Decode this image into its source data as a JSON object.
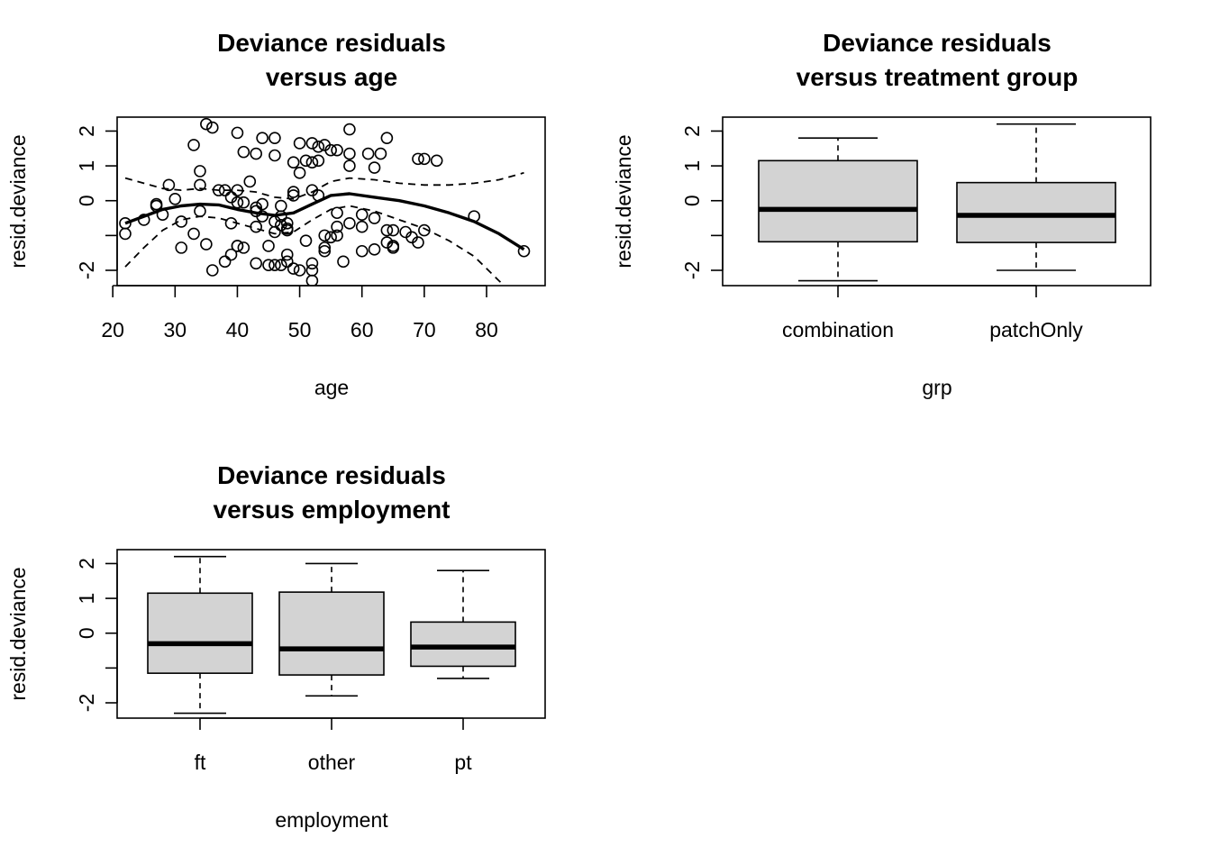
{
  "colors": {
    "box_fill": "#d3d3d3",
    "ink": "#000000",
    "background": "#ffffff"
  },
  "chart_data": [
    {
      "type": "scatter",
      "title": "Deviance residuals\nversus age",
      "title_lines": [
        "Deviance residuals",
        "versus age"
      ],
      "xlabel": "age",
      "ylabel": "resid.deviance",
      "xlim": [
        20.7,
        89.4
      ],
      "ylim": [
        -2.44,
        2.4
      ],
      "x_ticks": [
        20,
        30,
        40,
        50,
        60,
        70,
        80
      ],
      "y_ticks": [
        -2,
        -1,
        0,
        1,
        2
      ],
      "y_tick_labels": [
        "-2",
        "",
        "0",
        "1",
        "2"
      ],
      "grid": false,
      "points": [
        [
          22,
          -0.65
        ],
        [
          22,
          -0.95
        ],
        [
          25,
          -0.55
        ],
        [
          27,
          -0.1
        ],
        [
          27,
          -0.15
        ],
        [
          28,
          -0.4
        ],
        [
          29,
          0.45
        ],
        [
          30,
          0.05
        ],
        [
          31,
          -0.6
        ],
        [
          31,
          -1.35
        ],
        [
          33,
          -0.95
        ],
        [
          33,
          1.6
        ],
        [
          34,
          0.85
        ],
        [
          34,
          -0.3
        ],
        [
          34,
          0.45
        ],
        [
          35,
          2.2
        ],
        [
          35,
          -1.25
        ],
        [
          36,
          2.1
        ],
        [
          36,
          -2.0
        ],
        [
          37,
          0.3
        ],
        [
          38,
          0.3
        ],
        [
          38,
          -1.75
        ],
        [
          39,
          -1.55
        ],
        [
          39,
          -0.65
        ],
        [
          39,
          0.1
        ],
        [
          40,
          -0.05
        ],
        [
          40,
          0.3
        ],
        [
          40,
          1.95
        ],
        [
          40,
          -1.3
        ],
        [
          40,
          -1.3
        ],
        [
          41,
          -1.35
        ],
        [
          41,
          1.4
        ],
        [
          41,
          -0.05
        ],
        [
          42,
          0.55
        ],
        [
          43,
          1.35
        ],
        [
          43,
          -0.3
        ],
        [
          43,
          -0.2
        ],
        [
          43,
          -0.75
        ],
        [
          43,
          -1.8
        ],
        [
          44,
          -0.1
        ],
        [
          44,
          -0.45
        ],
        [
          44,
          1.8
        ],
        [
          45,
          -1.3
        ],
        [
          45,
          -1.85
        ],
        [
          46,
          1.8
        ],
        [
          46,
          -0.6
        ],
        [
          46,
          -0.9
        ],
        [
          46,
          1.3
        ],
        [
          46,
          -1.85
        ],
        [
          47,
          -0.7
        ],
        [
          47,
          -0.15
        ],
        [
          47,
          -0.45
        ],
        [
          47,
          -1.85
        ],
        [
          48,
          -0.65
        ],
        [
          48,
          -1.55
        ],
        [
          48,
          -0.8
        ],
        [
          48,
          -0.85
        ],
        [
          48,
          -1.75
        ],
        [
          49,
          1.1
        ],
        [
          49,
          0.25
        ],
        [
          49,
          0.15
        ],
        [
          49,
          -1.95
        ],
        [
          50,
          0.8
        ],
        [
          50,
          1.65
        ],
        [
          50,
          -2.0
        ],
        [
          51,
          1.15
        ],
        [
          51,
          -1.15
        ],
        [
          52,
          1.65
        ],
        [
          52,
          1.1
        ],
        [
          52,
          0.3
        ],
        [
          52,
          -1.8
        ],
        [
          52,
          -2.0
        ],
        [
          52,
          -2.3
        ],
        [
          53,
          1.55
        ],
        [
          53,
          1.15
        ],
        [
          53,
          0.15
        ],
        [
          54,
          -1.35
        ],
        [
          54,
          -1.0
        ],
        [
          54,
          -1.45
        ],
        [
          54,
          1.6
        ],
        [
          55,
          1.45
        ],
        [
          55,
          -1.05
        ],
        [
          56,
          1.45
        ],
        [
          56,
          -0.35
        ],
        [
          56,
          -0.75
        ],
        [
          56,
          -1.0
        ],
        [
          57,
          -1.75
        ],
        [
          58,
          1.35
        ],
        [
          58,
          1.0
        ],
        [
          58,
          2.05
        ],
        [
          58,
          -0.65
        ],
        [
          60,
          -0.4
        ],
        [
          60,
          -0.75
        ],
        [
          60,
          -1.45
        ],
        [
          61,
          1.35
        ],
        [
          62,
          -0.5
        ],
        [
          62,
          -1.4
        ],
        [
          62,
          0.95
        ],
        [
          63,
          1.35
        ],
        [
          64,
          1.8
        ],
        [
          64,
          -0.85
        ],
        [
          64,
          -1.2
        ],
        [
          65,
          -1.3
        ],
        [
          65,
          -1.35
        ],
        [
          65,
          -0.85
        ],
        [
          67,
          -0.9
        ],
        [
          68,
          -1.05
        ],
        [
          69,
          -1.2
        ],
        [
          69,
          1.2
        ],
        [
          70,
          -0.85
        ],
        [
          70,
          1.2
        ],
        [
          72,
          1.15
        ],
        [
          78,
          -0.45
        ],
        [
          86,
          -1.45
        ]
      ],
      "smooth_fit": [
        [
          22,
          -0.65
        ],
        [
          25,
          -0.45
        ],
        [
          28,
          -0.25
        ],
        [
          31,
          -0.15
        ],
        [
          34,
          -0.1
        ],
        [
          37,
          -0.12
        ],
        [
          40,
          -0.25
        ],
        [
          43,
          -0.35
        ],
        [
          46,
          -0.42
        ],
        [
          49,
          -0.35
        ],
        [
          52,
          -0.1
        ],
        [
          55,
          0.15
        ],
        [
          58,
          0.2
        ],
        [
          62,
          0.1
        ],
        [
          66,
          0.0
        ],
        [
          70,
          -0.15
        ],
        [
          74,
          -0.35
        ],
        [
          78,
          -0.6
        ],
        [
          82,
          -0.95
        ],
        [
          86,
          -1.4
        ]
      ],
      "upper_band": [
        [
          22,
          0.65
        ],
        [
          25,
          0.5
        ],
        [
          28,
          0.35
        ],
        [
          31,
          0.3
        ],
        [
          34,
          0.35
        ],
        [
          37,
          0.3
        ],
        [
          40,
          0.3
        ],
        [
          43,
          0.25
        ],
        [
          46,
          0.1
        ],
        [
          49,
          0.05
        ],
        [
          52,
          0.25
        ],
        [
          55,
          0.55
        ],
        [
          58,
          0.65
        ],
        [
          62,
          0.6
        ],
        [
          66,
          0.5
        ],
        [
          70,
          0.45
        ],
        [
          74,
          0.45
        ],
        [
          78,
          0.5
        ],
        [
          82,
          0.6
        ],
        [
          86,
          0.8
        ]
      ],
      "lower_band": [
        [
          22,
          -1.9
        ],
        [
          25,
          -1.35
        ],
        [
          28,
          -0.85
        ],
        [
          31,
          -0.55
        ],
        [
          34,
          -0.45
        ],
        [
          37,
          -0.5
        ],
        [
          40,
          -0.65
        ],
        [
          43,
          -0.8
        ],
        [
          46,
          -0.95
        ],
        [
          49,
          -0.9
        ],
        [
          52,
          -0.55
        ],
        [
          55,
          -0.25
        ],
        [
          58,
          -0.15
        ],
        [
          62,
          -0.3
        ],
        [
          66,
          -0.55
        ],
        [
          70,
          -0.8
        ],
        [
          74,
          -1.15
        ],
        [
          78,
          -1.6
        ],
        [
          82,
          -2.3
        ],
        [
          83.5,
          -2.55
        ]
      ]
    },
    {
      "type": "box",
      "title": "Deviance residuals\nversus treatment group",
      "title_lines": [
        "Deviance residuals",
        "versus treatment group"
      ],
      "xlabel": "grp",
      "ylabel": "resid.deviance",
      "ylim": [
        -2.44,
        2.4
      ],
      "y_ticks": [
        -2,
        -1,
        0,
        1,
        2
      ],
      "y_tick_labels": [
        "-2",
        "",
        "0",
        "1",
        "2"
      ],
      "grid": false,
      "categories": [
        "combination",
        "patchOnly"
      ],
      "boxes": [
        {
          "lower_whisker": -2.3,
          "q1": -1.18,
          "median": -0.25,
          "q3": 1.15,
          "upper_whisker": 1.8
        },
        {
          "lower_whisker": -2.0,
          "q1": -1.2,
          "median": -0.42,
          "q3": 0.52,
          "upper_whisker": 2.2
        }
      ]
    },
    {
      "type": "box",
      "title": "Deviance residuals\nversus employment",
      "title_lines": [
        "Deviance residuals",
        "versus employment"
      ],
      "xlabel": "employment",
      "ylabel": "resid.deviance",
      "ylim": [
        -2.44,
        2.4
      ],
      "y_ticks": [
        -2,
        -1,
        0,
        1,
        2
      ],
      "y_tick_labels": [
        "-2",
        "",
        "0",
        "1",
        "2"
      ],
      "grid": false,
      "categories": [
        "ft",
        "other",
        "pt"
      ],
      "boxes": [
        {
          "lower_whisker": -2.3,
          "q1": -1.15,
          "median": -0.3,
          "q3": 1.15,
          "upper_whisker": 2.2
        },
        {
          "lower_whisker": -1.8,
          "q1": -1.2,
          "median": -0.45,
          "q3": 1.18,
          "upper_whisker": 2.0
        },
        {
          "lower_whisker": -1.3,
          "q1": -0.95,
          "median": -0.4,
          "q3": 0.32,
          "upper_whisker": 1.8
        }
      ]
    }
  ]
}
